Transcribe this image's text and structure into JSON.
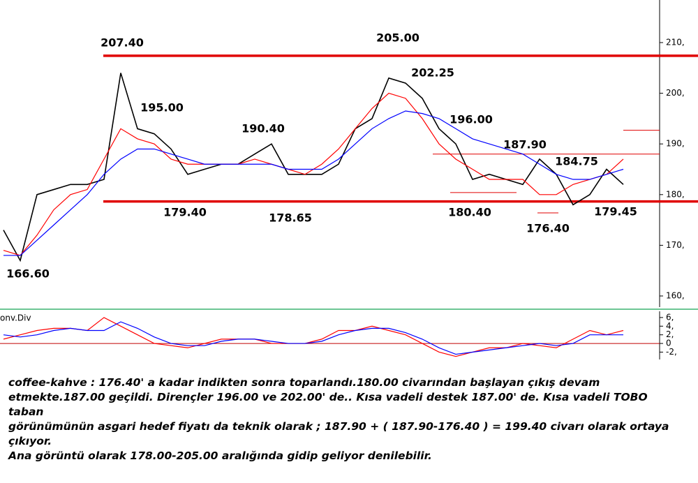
{
  "chart_data": [
    {
      "type": "line",
      "ylim": [
        157.8,
        218.4
      ],
      "yticks": [
        {
          "value": 160,
          "label": "160,"
        },
        {
          "value": 170,
          "label": "170,"
        },
        {
          "value": 180,
          "label": "180,"
        },
        {
          "value": 190,
          "label": "190,"
        },
        {
          "value": 200,
          "label": "200,"
        },
        {
          "value": 210,
          "label": "210,"
        }
      ],
      "series": [
        {
          "color": "#000000",
          "values": [
            173,
            167,
            180,
            181,
            182,
            182,
            183,
            204,
            193,
            192,
            189,
            184,
            185,
            186,
            186,
            188,
            190,
            184,
            184,
            184,
            186,
            193,
            195,
            203,
            202,
            199,
            193,
            190,
            183,
            184,
            183,
            182,
            187,
            184,
            178,
            180,
            185,
            182
          ]
        },
        {
          "color": "#ff0000",
          "values": [
            169,
            168,
            172,
            177,
            180,
            181,
            187,
            193,
            191,
            190,
            187,
            186,
            186,
            186,
            186,
            187,
            186,
            185,
            184,
            186,
            189,
            193,
            197,
            200,
            199,
            195,
            190,
            187,
            185,
            183,
            183,
            183,
            180,
            180,
            182,
            183,
            184,
            187
          ]
        },
        {
          "color": "#0000ff",
          "values": [
            168,
            168,
            171,
            174,
            177,
            180,
            184,
            187,
            189,
            189,
            188,
            187,
            186,
            186,
            186,
            186,
            186,
            185,
            185,
            185,
            187,
            190,
            193,
            195,
            196.5,
            196,
            195,
            193,
            191,
            190,
            189,
            188,
            186,
            184,
            183,
            183,
            184,
            185
          ]
        }
      ],
      "levels": [
        207.4,
        178.65
      ],
      "minor_levels": [
        192.7,
        188,
        180.4,
        176.4
      ],
      "annotations": [
        "207.40",
        "205.00",
        "202.25",
        "195.00",
        "196.00",
        "190.40",
        "187.90",
        "184.75",
        "179.40",
        "178.65",
        "180.40",
        "176.40",
        "179.45",
        "166.60"
      ]
    },
    {
      "type": "line",
      "title": "onv.Div",
      "ylim": [
        -3.7,
        7.6
      ],
      "yticks": [
        {
          "value": 6,
          "label": "6,"
        },
        {
          "value": 4,
          "label": "4,"
        },
        {
          "value": 2,
          "label": "2,"
        },
        0,
        {
          "value": -2,
          "label": "-2,"
        }
      ],
      "series": [
        {
          "color": "#ff0000",
          "values": [
            1,
            2,
            3,
            3.5,
            3.5,
            3,
            6,
            4,
            2,
            0,
            -0.5,
            -1,
            0,
            1,
            1,
            1,
            0,
            0,
            0,
            1,
            3,
            3,
            4,
            3,
            2,
            0,
            -2,
            -3,
            -2,
            -1,
            -1,
            0,
            -0.5,
            -1,
            1,
            3,
            2,
            3
          ]
        },
        {
          "color": "#0000ff",
          "values": [
            2,
            1.5,
            2,
            3,
            3.5,
            3,
            3,
            5,
            3.5,
            1.5,
            0,
            -0.5,
            -0.5,
            0.5,
            1,
            1,
            0.5,
            0,
            0,
            0.5,
            2,
            3,
            3.5,
            3.5,
            2.5,
            1,
            -1,
            -2.5,
            -2,
            -1.5,
            -1,
            -0.5,
            0,
            -0.5,
            0,
            2,
            2,
            2
          ]
        }
      ]
    }
  ],
  "commentary": [
    "coffee-kahve : 176.40' a kadar indikten sonra toparlandı.180.00 civarından başlayan çıkış devam",
    "etmekte.187.00 geçildi. Dirençler 196.00 ve 202.00' de.. Kısa vadeli destek 187.00' de. Kısa vadeli TOBO taban",
    "görünümünün asgari hedef fiyatı da teknik olarak ; 187.90 + ( 187.90-176.40 ) = 199.40 civarı olarak ortaya",
    "çıkıyor.",
    "Ana görüntü olarak 178.00-205.00 aralığında gidip geliyor denilebilir."
  ]
}
